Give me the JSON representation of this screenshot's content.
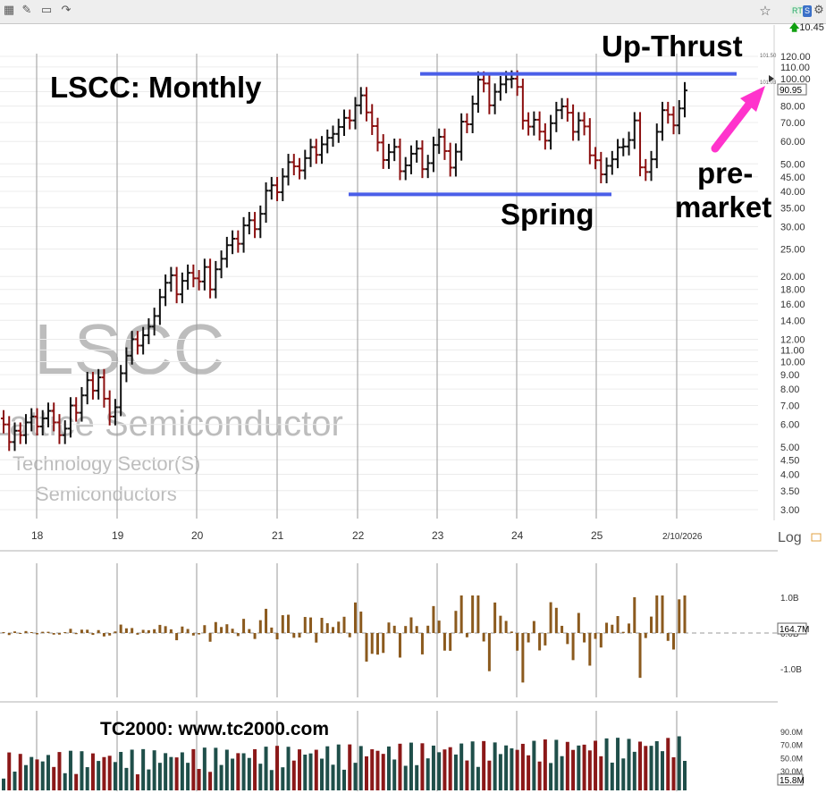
{
  "toolbar": {
    "icons": [
      "grid-icon",
      "pencil-icon",
      "chat-icon",
      "share-icon"
    ],
    "star_icon": "star-icon",
    "rt_badge": "RT",
    "s_badge": "S",
    "settings_icon": "gear-icon",
    "last_price": "10.45"
  },
  "chart_data": {
    "type": "ohlc",
    "title": "LSCC:  Monthly",
    "watermark_symbol": "LSCC",
    "watermark_name": "Lattice Semiconductor",
    "watermark_sector": "Technology Sector(S)",
    "watermark_industry": "Semiconductors",
    "scale": "Log",
    "price_ticks": [
      "120.00",
      "110.00",
      "100.00",
      "90.00",
      "80.00",
      "70.00",
      "60.00",
      "50.00",
      "45.00",
      "40.00",
      "35.00",
      "30.00",
      "25.00",
      "20.00",
      "18.00",
      "16.00",
      "14.00",
      "12.00",
      "11.00",
      "10.00",
      "9.00",
      "8.00",
      "7.00",
      "6.00",
      "5.00",
      "4.50",
      "4.00",
      "3.50",
      "3.00"
    ],
    "x_ticks": [
      "18",
      "19",
      "20",
      "21",
      "22",
      "23",
      "24",
      "25",
      "2/10/2026"
    ],
    "current_price_tag": "90.95",
    "price_tag_small_upper": "101.50",
    "price_tag_small_lower": "101.03",
    "annotations": {
      "upthrust": "Up-Thrust",
      "spring": "Spring",
      "premarket_line1": "pre-",
      "premarket_line2": "market",
      "resistance_level": 104,
      "support_level": 39
    },
    "closes": [
      6.0,
      5.2,
      5.7,
      5.5,
      6.1,
      6.4,
      5.9,
      6.3,
      6.7,
      6.1,
      5.5,
      5.8,
      7.0,
      6.6,
      7.6,
      8.6,
      7.9,
      8.8,
      7.4,
      6.4,
      6.9,
      9.1,
      10.5,
      12.0,
      11.4,
      12.4,
      13.3,
      14.5,
      16.9,
      19.0,
      20.2,
      17.3,
      19.3,
      20.6,
      19.7,
      19.2,
      21.6,
      18.0,
      21.2,
      23.1,
      25.8,
      27.2,
      26.1,
      30.3,
      31.6,
      29.4,
      33.3,
      40.2,
      42.0,
      39.7,
      45.1,
      50.7,
      49.0,
      47.4,
      52.4,
      57.3,
      53.8,
      58.6,
      61.8,
      63.8,
      67.5,
      72.7,
      71.2,
      80.5,
      87.3,
      76.0,
      68.0,
      59.5,
      51.6,
      55.0,
      57.4,
      47.1,
      49.4,
      54.3,
      56.6,
      47.9,
      50.3,
      58.3,
      62.3,
      55.5,
      48.5,
      55.2,
      70.5,
      69.0,
      81.5,
      99.2,
      96.2,
      80.5,
      89.9,
      95.5,
      99.5,
      100.0,
      93.5,
      71.1,
      67.7,
      71.6,
      65.0,
      60.4,
      69.6,
      77.4,
      79.8,
      75.8,
      64.9,
      71.2,
      67.8,
      53.6,
      51.5,
      45.9,
      49.2,
      51.9,
      57.2,
      57.6,
      60.7,
      71.2,
      48.6,
      46.8,
      51.9,
      64.9,
      77.4,
      74.6,
      68.4,
      78.5,
      90.9
    ],
    "bar_colors": "alternating dark red / black by down-up month",
    "dollar_volume_ticks": [
      "1.0B",
      "0.0B",
      "-1.0B"
    ],
    "dollar_volume_tag": "164.7M",
    "volume_ticks": [
      "90.0M",
      "70.0M",
      "50.0M",
      "30.0M"
    ],
    "volume_tag": "15.8M",
    "footer_text": "TC2000:  www.tc2000.com",
    "bar_color_up": "#111111",
    "bar_color_down": "#8b0f0f",
    "line_color": "#4a5ee8",
    "arrow_color": "#ff33cc",
    "vol_up_color": "#1f4f4a",
    "vol_down_color": "#8b1818",
    "flow_color": "#8b5a1e"
  }
}
